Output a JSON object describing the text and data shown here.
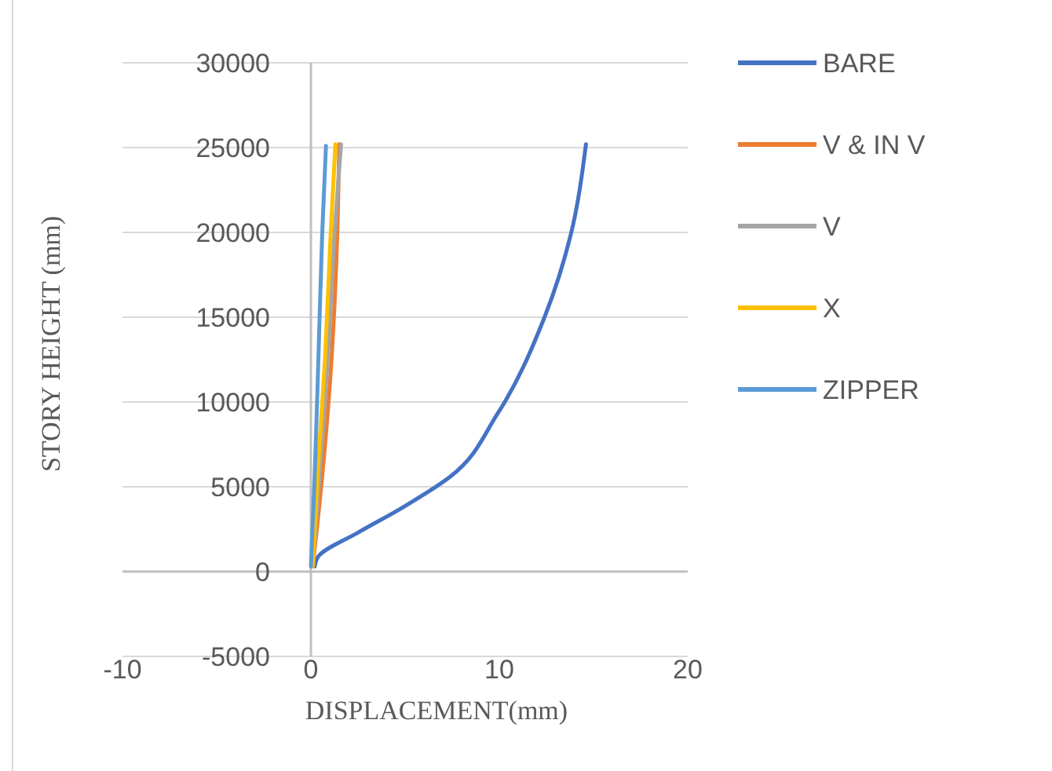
{
  "chart_data": {
    "type": "line",
    "xlabel": "DISPLACEMENT(mm)",
    "ylabel": "STORY HEIGHT (mm)",
    "xlim": [
      -10,
      20
    ],
    "xticks": [
      -10,
      0,
      10,
      20
    ],
    "ylim": [
      -5000,
      30000
    ],
    "yticks": [
      -5000,
      0,
      5000,
      10000,
      15000,
      20000,
      25000,
      30000
    ],
    "grid": "y",
    "legend": "right",
    "marker": "none",
    "line_style": "solid",
    "series": [
      {
        "name": "BARE",
        "color": "#4472c4",
        "x": [
          0.2,
          0.4,
          2.5,
          4.9,
          7.4,
          9.9,
          12.4,
          13.8,
          14.6
        ],
        "values": [
          300,
          900,
          2300,
          3800,
          5600,
          9300,
          15000,
          19900,
          25200
        ]
      },
      {
        "name": "V & IN V",
        "color": "#ed7d31",
        "x": [
          0.1,
          0.6,
          1.1,
          1.4,
          1.5
        ],
        "values": [
          300,
          5600,
          12600,
          19900,
          25200
        ]
      },
      {
        "name": "V",
        "color": "#a5a5a5",
        "x": [
          0.1,
          0.45,
          0.9,
          1.25,
          1.6
        ],
        "values": [
          300,
          5600,
          12600,
          19900,
          25200
        ]
      },
      {
        "name": "X",
        "color": "#ffc000",
        "x": [
          0.1,
          0.35,
          0.75,
          1.05,
          1.3
        ],
        "values": [
          300,
          5600,
          12600,
          19900,
          25200
        ]
      },
      {
        "name": "ZIPPER",
        "color": "#5b9bd5",
        "x": [
          0,
          0.2,
          0.4,
          0.6,
          0.8
        ],
        "values": [
          300,
          5600,
          12600,
          19900,
          25100
        ]
      }
    ]
  }
}
